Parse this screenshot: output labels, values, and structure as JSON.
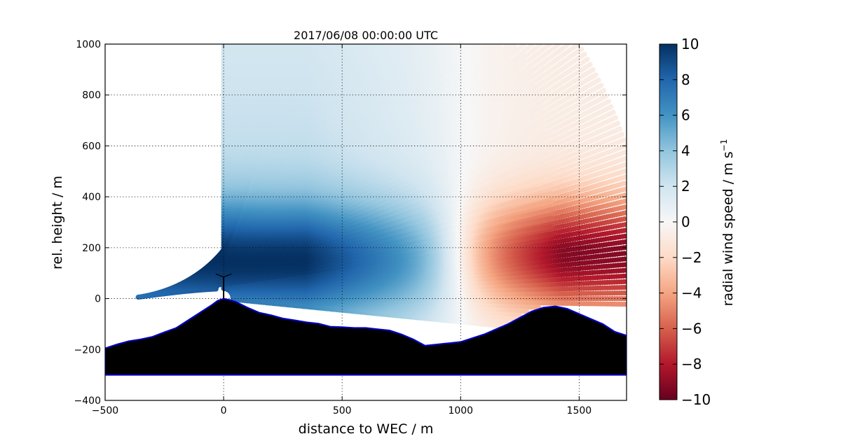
{
  "chart_data": {
    "type": "scatter",
    "title": "2017/06/08 00:00:00 UTC",
    "xlabel": "distance to WEC / m",
    "ylabel": "rel. height / m",
    "xlim": [
      -500,
      1700
    ],
    "ylim": [
      -400,
      1000
    ],
    "xticks": [
      "−500",
      "0",
      "500",
      "1000",
      "1500"
    ],
    "yticks": [
      "−400",
      "−200",
      "0",
      "200",
      "400",
      "600",
      "800",
      "1000"
    ],
    "x_tick_values": [
      -500,
      0,
      500,
      1000,
      1500
    ],
    "y_tick_values": [
      -400,
      -200,
      0,
      200,
      400,
      600,
      800,
      1000
    ],
    "grid": true,
    "colorbar": {
      "label_main": "radial wind speed / m s",
      "label_exp": "−1",
      "range": [
        -10,
        10
      ],
      "colormap": "RdBu",
      "ticks": [
        "10",
        "8",
        "6",
        "4",
        "2",
        "0",
        "−2",
        "−4",
        "−6",
        "−8",
        "−10"
      ],
      "tick_values": [
        10,
        8,
        6,
        4,
        2,
        0,
        -2,
        -4,
        -6,
        -8,
        -10
      ]
    },
    "scan": {
      "origin": [
        0,
        0
      ],
      "elevation_deg": [
        -8,
        180
      ],
      "max_range_m": 1800
    },
    "terrain_profile": {
      "x": [
        -500,
        -450,
        -400,
        -350,
        -300,
        -250,
        -200,
        -150,
        -100,
        -50,
        -25,
        0,
        25,
        50,
        100,
        150,
        200,
        250,
        300,
        350,
        400,
        450,
        500,
        550,
        600,
        650,
        700,
        750,
        800,
        850,
        900,
        950,
        1000,
        1050,
        1100,
        1150,
        1200,
        1250,
        1300,
        1350,
        1400,
        1450,
        1500,
        1550,
        1600,
        1650,
        1700
      ],
      "y": [
        -195,
        -180,
        -167,
        -160,
        -150,
        -132,
        -115,
        -85,
        -55,
        -25,
        -8,
        0,
        -5,
        -12,
        -35,
        -55,
        -65,
        -78,
        -85,
        -93,
        -98,
        -110,
        -112,
        -115,
        -115,
        -120,
        -125,
        -140,
        -160,
        -185,
        -180,
        -175,
        -170,
        -155,
        -140,
        -120,
        -100,
        -75,
        -50,
        -35,
        -30,
        -40,
        -60,
        -80,
        -100,
        -130,
        -145
      ],
      "base_y": -300,
      "edge_color": "#0000cc"
    },
    "turbine": {
      "x": 0,
      "hub_height_m": 85,
      "rotor_radius_m": 40
    },
    "colors": {
      "positive_max": "#053061",
      "negative_max": "#67001f",
      "zero": "#f7f7f7",
      "terrain": "#000000",
      "terrain_edge": "#0000cc"
    }
  }
}
